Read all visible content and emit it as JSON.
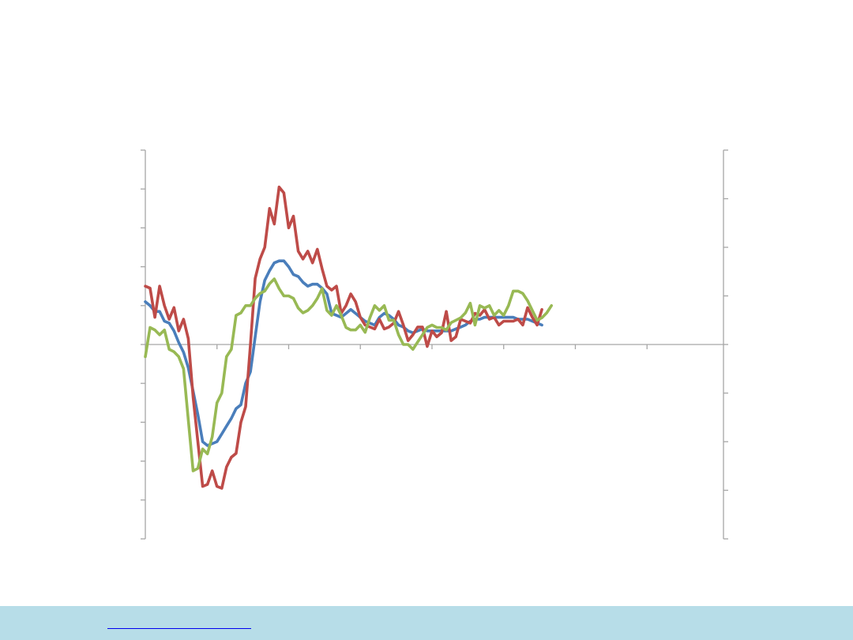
{
  "chart_data": {
    "type": "line",
    "title": "",
    "xlabel": "",
    "ylabel_left": "",
    "ylabel_right": "",
    "grid": false,
    "legend": "none",
    "left_axis": {
      "ylim": [
        -5,
        5
      ],
      "ticks": [
        -5,
        -4,
        -3,
        -2,
        -1,
        0,
        1,
        2,
        3,
        4,
        5
      ],
      "tick_labels_shown": false
    },
    "right_axis": {
      "ylim": [
        -4,
        4
      ],
      "ticks": [
        -4,
        -3,
        -2,
        -1,
        0,
        1,
        2,
        3,
        4
      ],
      "tick_labels_shown": false
    },
    "x_range": [
      0,
      121
    ],
    "x_ticks": [
      15,
      30,
      45,
      60,
      75,
      90,
      105
    ],
    "colors": {
      "blue": "#4a7ebb",
      "red": "#be4b48",
      "green": "#98b954",
      "axis": "#a6a6a6"
    },
    "series": [
      {
        "color": "#4a7ebb",
        "axis": "left",
        "x_start": 0,
        "values": [
          1.1,
          1.0,
          0.85,
          0.85,
          0.6,
          0.55,
          0.35,
          0.05,
          -0.2,
          -0.6,
          -1.2,
          -1.8,
          -2.5,
          -2.6,
          -2.55,
          -2.5,
          -2.3,
          -2.1,
          -1.9,
          -1.65,
          -1.55,
          -1.0,
          -0.7,
          0.2,
          1.1,
          1.65,
          1.9,
          2.1,
          2.15,
          2.15,
          2.0,
          1.8,
          1.75,
          1.6,
          1.5,
          1.55,
          1.55,
          1.45,
          1.3,
          0.8,
          0.75,
          0.7,
          0.8,
          0.9,
          0.8,
          0.7,
          0.6,
          0.55,
          0.5,
          0.7,
          0.8,
          0.75,
          0.65,
          0.5,
          0.45,
          0.35,
          0.3,
          0.35,
          0.4,
          0.35,
          0.35,
          0.35,
          0.35,
          0.35,
          0.35,
          0.4,
          0.45,
          0.5,
          0.6,
          0.65,
          0.65,
          0.7,
          0.7,
          0.7,
          0.7,
          0.7,
          0.7,
          0.7,
          0.65,
          0.65,
          0.65,
          0.6,
          0.55,
          0.5
        ]
      },
      {
        "color": "#be4b48",
        "axis": "left",
        "x_start": 0,
        "values": [
          1.5,
          1.45,
          0.7,
          1.5,
          1.0,
          0.65,
          0.95,
          0.35,
          0.65,
          0.15,
          -1.35,
          -2.5,
          -3.65,
          -3.6,
          -3.25,
          -3.65,
          -3.7,
          -3.15,
          -2.9,
          -2.8,
          -2.0,
          -1.6,
          0.0,
          1.7,
          2.2,
          2.5,
          3.5,
          3.1,
          4.05,
          3.9,
          3.0,
          3.3,
          2.4,
          2.2,
          2.4,
          2.1,
          2.45,
          1.95,
          1.5,
          1.4,
          1.5,
          0.8,
          1.0,
          1.3,
          1.1,
          0.7,
          0.5,
          0.45,
          0.4,
          0.65,
          0.4,
          0.45,
          0.55,
          0.85,
          0.5,
          0.1,
          0.25,
          0.45,
          0.45,
          -0.05,
          0.35,
          0.2,
          0.3,
          0.85,
          0.1,
          0.2,
          0.65,
          0.6,
          0.55,
          0.8,
          0.75,
          0.9,
          0.65,
          0.7,
          0.5,
          0.6,
          0.6,
          0.6,
          0.65,
          0.5,
          0.95,
          0.7,
          0.5,
          0.9
        ]
      },
      {
        "color": "#98b954",
        "axis": "right",
        "x_start": 0,
        "values": [
          -0.25,
          0.35,
          0.3,
          0.2,
          0.3,
          -0.1,
          -0.15,
          -0.25,
          -0.5,
          -1.55,
          -2.6,
          -2.55,
          -2.15,
          -2.25,
          -1.9,
          -1.2,
          -1.0,
          -0.25,
          -0.1,
          0.6,
          0.65,
          0.8,
          0.8,
          0.95,
          1.05,
          1.1,
          1.25,
          1.35,
          1.15,
          1.0,
          1.0,
          0.95,
          0.75,
          0.65,
          0.7,
          0.8,
          0.95,
          1.15,
          0.7,
          0.6,
          0.8,
          0.6,
          0.35,
          0.3,
          0.3,
          0.4,
          0.25,
          0.55,
          0.8,
          0.7,
          0.8,
          0.5,
          0.5,
          0.2,
          0.0,
          0.0,
          -0.1,
          0.05,
          0.2,
          0.35,
          0.4,
          0.35,
          0.35,
          0.3,
          0.45,
          0.5,
          0.55,
          0.65,
          0.85,
          0.4,
          0.8,
          0.75,
          0.8,
          0.6,
          0.7,
          0.6,
          0.8,
          1.1,
          1.1,
          1.05,
          0.9,
          0.7,
          0.5,
          0.55,
          0.65,
          0.8
        ]
      }
    ]
  },
  "footer": {
    "link_text": ""
  }
}
